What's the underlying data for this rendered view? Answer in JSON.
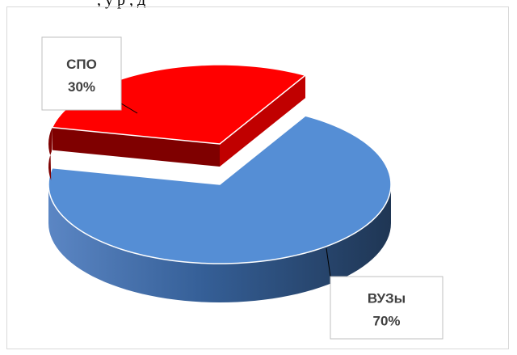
{
  "page": {
    "top_text": ", у р , д"
  },
  "chart_data": {
    "type": "pie",
    "style": "3d-exploded",
    "title": "",
    "legend": "none",
    "slices": [
      {
        "label": "ВУЗы",
        "value": 70,
        "value_label": "70%",
        "color": "#558ed5",
        "side_color": "#2f5486",
        "exploded": false
      },
      {
        "label": "СПО",
        "value": 30,
        "value_label": "30%",
        "color": "#ff0000",
        "side_color": "#7f0000",
        "exploded": true
      }
    ]
  }
}
